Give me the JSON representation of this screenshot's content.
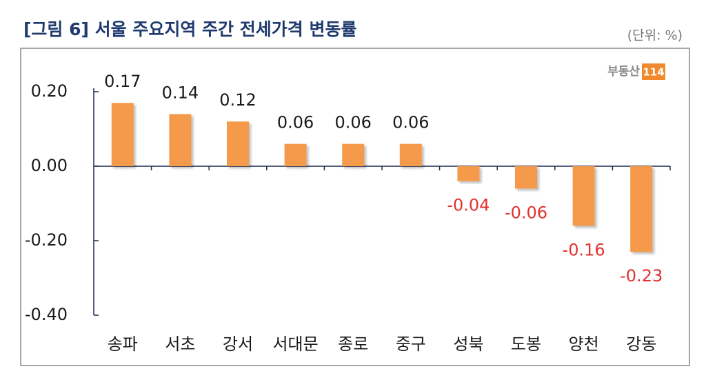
{
  "chart_data": {
    "type": "bar",
    "title": "[그림 6] 서울 주요지역 주간 전세가격 변동률",
    "unit_note": "(단위: %)",
    "source_logo": "부동산",
    "source_logo_badge": "114",
    "categories": [
      "송파",
      "서초",
      "강서",
      "서대문",
      "종로",
      "중구",
      "성북",
      "도봉",
      "양천",
      "강동"
    ],
    "values": [
      0.17,
      0.14,
      0.12,
      0.06,
      0.06,
      0.06,
      -0.04,
      -0.06,
      -0.16,
      -0.23
    ],
    "color": "#f59a4c",
    "label_color": "#1a1a1a",
    "negative_label_color": "#e0322f",
    "ylim": [
      -0.4,
      0.2
    ],
    "yticks": [
      {
        "value": -0.4,
        "label": "-0.40"
      },
      {
        "value": -0.2,
        "label": "-0.20"
      },
      {
        "value": 0,
        "label": "0.00"
      },
      {
        "value": 0.2,
        "label": "0.20"
      }
    ],
    "grid": false
  }
}
